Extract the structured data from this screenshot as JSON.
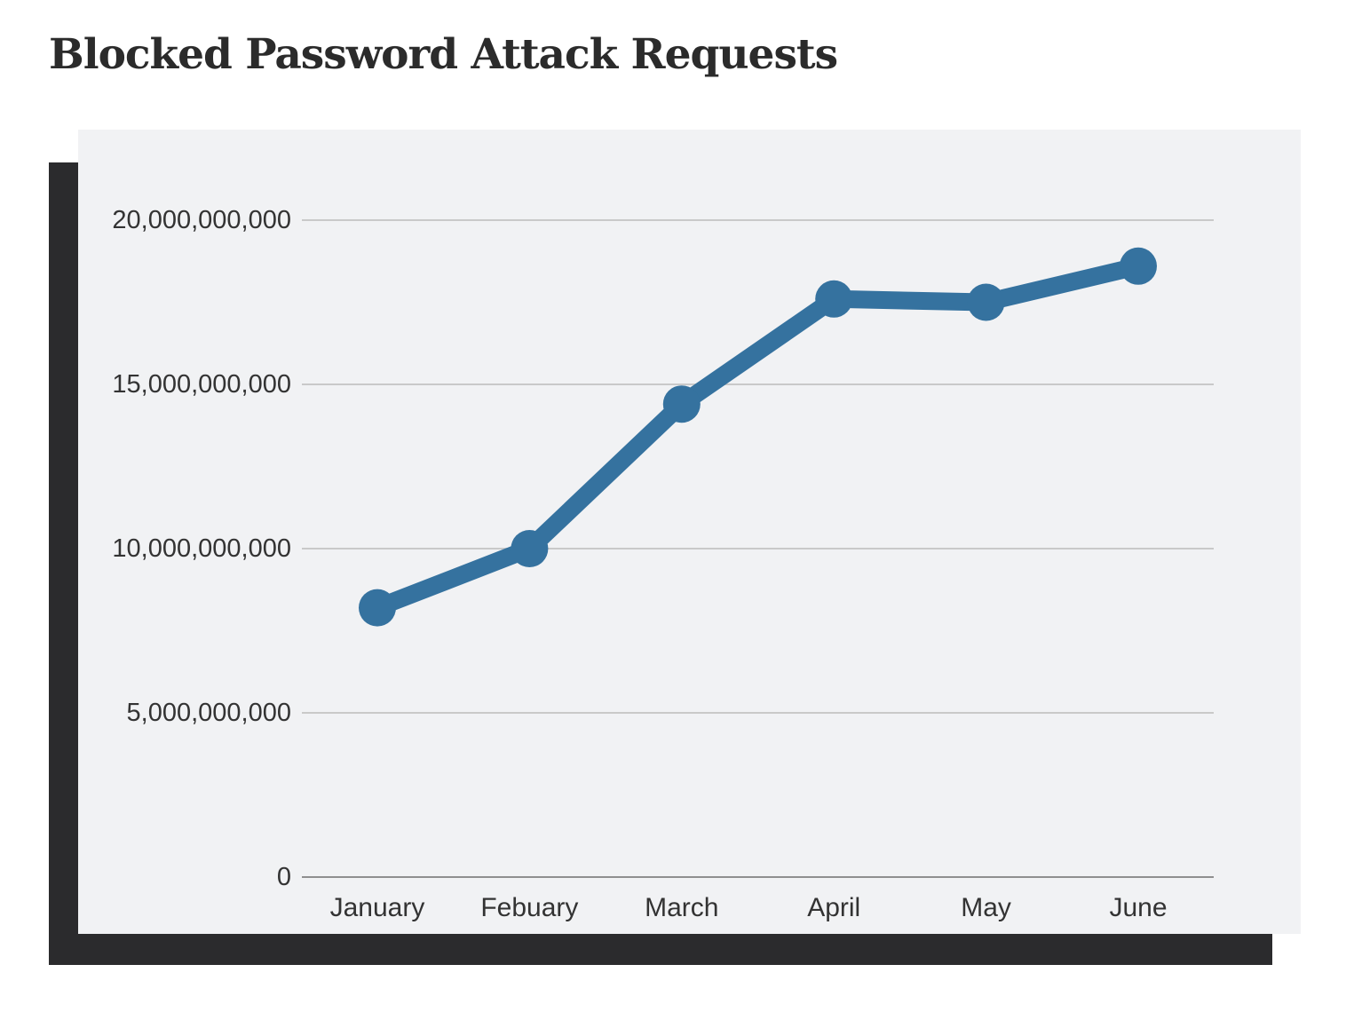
{
  "page": {
    "title": "Blocked Password Attack Requests"
  },
  "colors": {
    "title": "#2b2b2b",
    "panel_bg": "#f1f2f4",
    "shadow": "#2b2b2d",
    "line": "#35729f",
    "grid": "#c9c9c9",
    "baseline": "#8f8f8f",
    "tick_text": "#333333"
  },
  "chart_data": {
    "type": "line",
    "title": "Blocked Password Attack Requests",
    "categories": [
      "January",
      "Febuary",
      "March",
      "April",
      "May",
      "June"
    ],
    "series": [
      {
        "name": "Blocked Password Attack Requests",
        "values": [
          8200000000,
          10000000000,
          14400000000,
          17600000000,
          17500000000,
          18600000000
        ]
      }
    ],
    "xlabel": "",
    "ylabel": "",
    "ylim": [
      0,
      20000000000
    ],
    "yticks": [
      0,
      5000000000,
      10000000000,
      15000000000,
      20000000000
    ],
    "ytick_labels": [
      "0",
      "5,000,000,000",
      "10,000,000,000",
      "15,000,000,000",
      "20,000,000,000"
    ],
    "grid": true,
    "legend": false,
    "marker": "circle",
    "line_color": "#35729f",
    "line_width": 20,
    "marker_radius": 21
  }
}
